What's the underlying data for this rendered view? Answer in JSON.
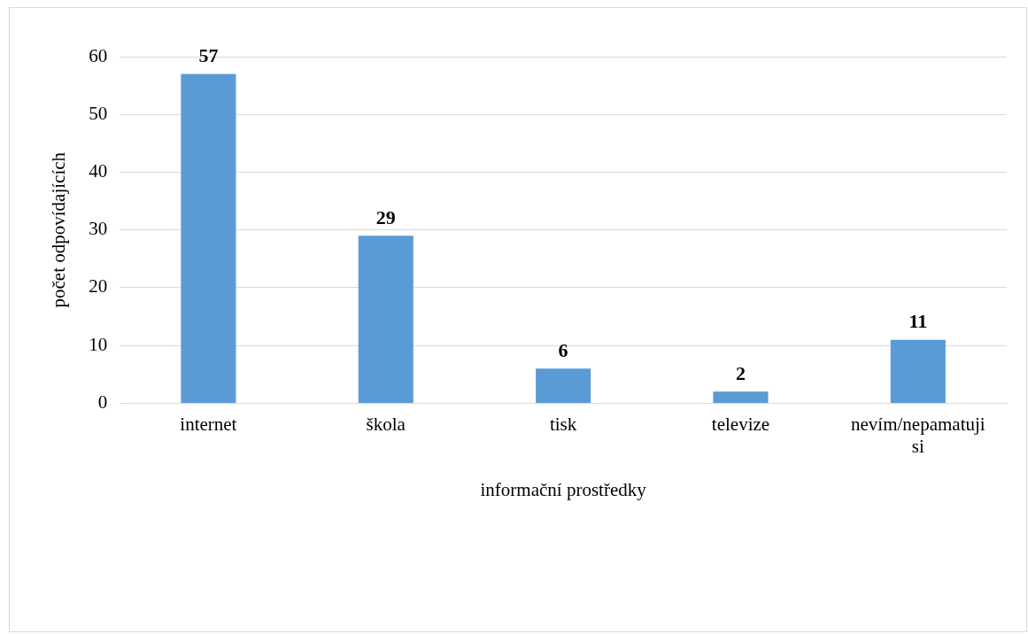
{
  "chart_data": {
    "type": "bar",
    "xlabel": "informační prostředky",
    "ylabel": "počet odpovídajících",
    "categories": [
      "internet",
      "škola",
      "tisk",
      "televize",
      "nevím/nepamatuji si"
    ],
    "values": [
      57,
      29,
      6,
      2,
      11
    ],
    "color": "#5b9bd5",
    "ylim": [
      0,
      60
    ],
    "yticks": [
      0,
      10,
      20,
      30,
      40,
      50,
      60
    ],
    "grid": "y",
    "legend": false,
    "data_labels": true
  }
}
